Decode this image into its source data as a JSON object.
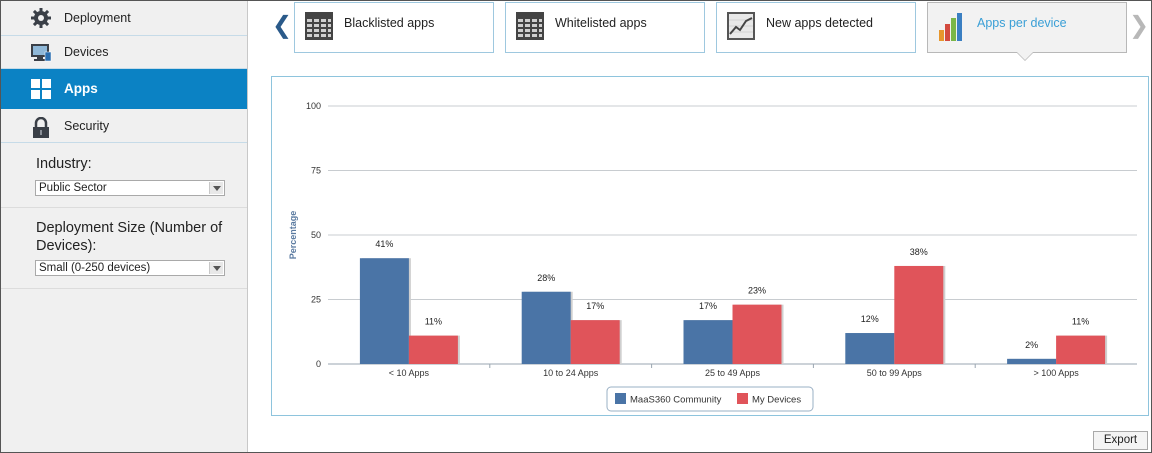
{
  "sidebar": {
    "nav": [
      {
        "label": "Deployment",
        "icon": "gear-icon"
      },
      {
        "label": "Devices",
        "icon": "monitor-icon"
      },
      {
        "label": "Apps",
        "icon": "apps-grid-icon",
        "active": true
      },
      {
        "label": "Security",
        "icon": "lock-icon"
      }
    ],
    "industry": {
      "label": "Industry:",
      "value": "Public Sector"
    },
    "deployment_size": {
      "label": "Deployment Size (Number of Devices):",
      "value": "Small (0-250 devices)"
    }
  },
  "tabs": [
    {
      "label": "Blacklisted apps",
      "icon": "table-grid-icon"
    },
    {
      "label": "Whitelisted apps",
      "icon": "table-grid-icon"
    },
    {
      "label": "New apps detected",
      "icon": "line-chart-icon"
    },
    {
      "label": "Apps per device",
      "icon": "bar-chart-icon",
      "active": true
    }
  ],
  "export_label": "Export",
  "colors": {
    "accent": "#0b82c4",
    "series_community": "#4a74a6",
    "series_my_devices": "#e0545a",
    "active_tab_text": "#3a9fd6",
    "tab_arrow": "#2a5a8a"
  },
  "chart_data": {
    "type": "bar",
    "categories": [
      "< 10 Apps",
      "10 to 24 Apps",
      "25 to 49 Apps",
      "50 to 99 Apps",
      "> 100 Apps"
    ],
    "series": [
      {
        "name": "MaaS360 Community",
        "values": [
          41,
          28,
          17,
          12,
          2
        ]
      },
      {
        "name": "My Devices",
        "values": [
          11,
          17,
          23,
          38,
          11
        ]
      }
    ],
    "data_labels": [
      [
        "41%",
        "28%",
        "17%",
        "12%",
        "2%"
      ],
      [
        "11%",
        "17%",
        "23%",
        "38%",
        "11%"
      ]
    ],
    "ylabel": "Percentage",
    "ylim": [
      0,
      100
    ],
    "yticks": [
      "0",
      "25",
      "50",
      "75",
      "100"
    ],
    "grid": true,
    "legend_position": "bottom"
  }
}
